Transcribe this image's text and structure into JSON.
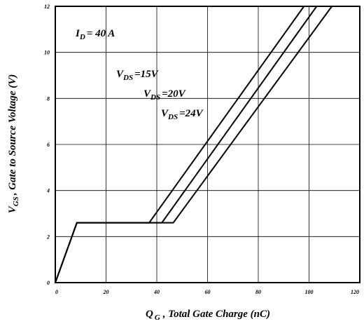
{
  "chart_data": {
    "type": "line",
    "xlim": [
      0,
      120
    ],
    "ylim": [
      0,
      12
    ],
    "x_ticks": [
      "0",
      "20",
      "40",
      "60",
      "80",
      "100",
      "120"
    ],
    "y_ticks": [
      "0",
      "2",
      "4",
      "6",
      "8",
      "10",
      "12"
    ],
    "x_tick_values": [
      0,
      20,
      40,
      60,
      80,
      100,
      120
    ],
    "y_tick_values": [
      0,
      2,
      4,
      6,
      8,
      10,
      12
    ],
    "grid": true,
    "xlabel": {
      "main": "Q",
      "sub": "G",
      "rest": ", Total Gate Charge (nC)"
    },
    "ylabel": {
      "main": "V",
      "sub": "GS",
      "rest": ", Gate to Source Voltage (V)"
    },
    "annotations": {
      "id": {
        "main": "I",
        "sub": "D",
        "rest": "= 40 A"
      },
      "vds15": {
        "main": "V",
        "sub": "DS",
        "rest": "=15V"
      },
      "vds20": {
        "main": "V",
        "sub": "DS",
        "rest": "=20V"
      },
      "vds24": {
        "main": "V",
        "sub": "DS",
        "rest": "=24V"
      }
    },
    "series": [
      {
        "points": [
          [
            0,
            0
          ],
          [
            8.5,
            2.6
          ],
          [
            37,
            2.6
          ],
          [
            98,
            12
          ]
        ]
      },
      {
        "points": [
          [
            0,
            0
          ],
          [
            8.5,
            2.6
          ],
          [
            42,
            2.6
          ],
          [
            103,
            12
          ]
        ]
      },
      {
        "points": [
          [
            0,
            0
          ],
          [
            8.5,
            2.6
          ],
          [
            46.5,
            2.6
          ],
          [
            109,
            12
          ]
        ]
      }
    ]
  }
}
